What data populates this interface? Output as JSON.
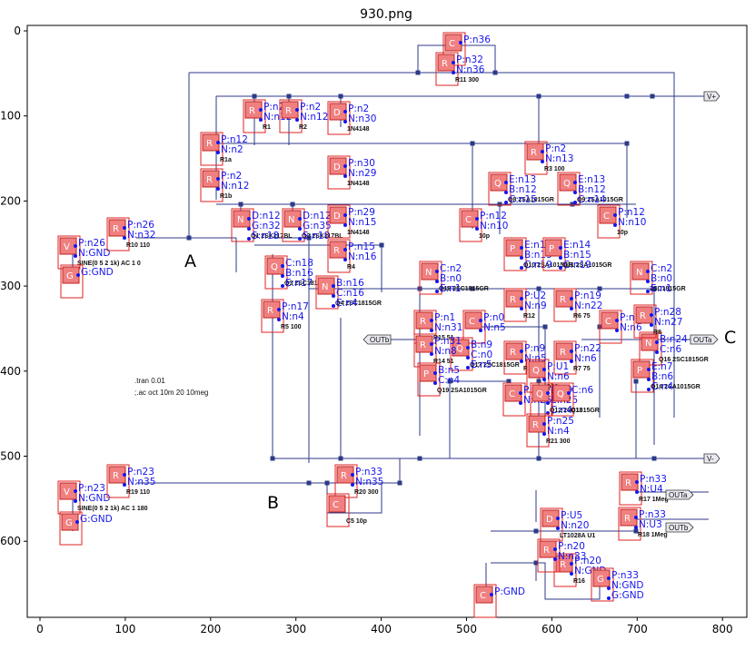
{
  "figure": {
    "title": "930.png",
    "x_ticks": [
      "0",
      "100",
      "200",
      "300",
      "400",
      "500",
      "600",
      "700",
      "800"
    ],
    "y_ticks": [
      "0",
      "100",
      "200",
      "300",
      "400",
      "500",
      "600"
    ]
  },
  "colors": {
    "label": "#1515ee",
    "wire": "#2c3a88",
    "component_fill": "#f08080",
    "component_border": "#e02020"
  },
  "schematic": {
    "test_points": [
      "A",
      "B",
      "C"
    ],
    "spice_directives": [
      ".tran 0.01",
      ";.ac oct 10m 20 10meg"
    ],
    "ports": [
      "V+",
      "V-",
      "OUTa",
      "OUTb"
    ],
    "components": [
      {
        "tag": "C",
        "part": "",
        "pins": [
          "P:n36"
        ]
      },
      {
        "tag": "R",
        "part": "R11 300",
        "pins": [
          "P:n32",
          "N:n36"
        ]
      },
      {
        "tag": "R",
        "part": "R1",
        "pins": [
          "P:n2",
          "N:n12"
        ]
      },
      {
        "tag": "R",
        "part": "R2",
        "pins": [
          "P:n2",
          "N:n12"
        ]
      },
      {
        "tag": "D",
        "part": "1N4148",
        "pins": [
          "P:n2",
          "N:n30"
        ]
      },
      {
        "tag": "R",
        "part": "R1a",
        "pins": [
          "P:n12",
          "N:n2"
        ]
      },
      {
        "tag": "R",
        "part": "R1b",
        "pins": [
          "P:n2",
          "N:n12"
        ]
      },
      {
        "tag": "D",
        "part": "1N4148",
        "pins": [
          "P:n30",
          "N:n29"
        ]
      },
      {
        "tag": "R",
        "part": "R3 100",
        "pins": [
          "P:n2",
          "N:n13"
        ]
      },
      {
        "tag": "Q",
        "part": "Q8 2SA1015GR",
        "pins": [
          "E:n13",
          "B:n12",
          "C:n15"
        ]
      },
      {
        "tag": "Q",
        "part": "Q9 2SA1015GR",
        "pins": [
          "E:n13",
          "B:n12",
          "C:n14"
        ]
      },
      {
        "tag": "C",
        "part": "10p",
        "pins": [
          "P:n12",
          "N:n10"
        ]
      },
      {
        "tag": "C",
        "part": "10p",
        "pins": [
          "P:n12",
          "N:n10"
        ]
      },
      {
        "tag": "N",
        "part": "Q1 2SK117BL",
        "pins": [
          "D:n12",
          "G:n32",
          "S:n18"
        ]
      },
      {
        "tag": "N",
        "part": "Q2 2SK117BL",
        "pins": [
          "D:n12",
          "G:n35",
          "S:n18"
        ]
      },
      {
        "tag": "D",
        "part": "1N4148",
        "pins": [
          "P:n29",
          "N:n15"
        ]
      },
      {
        "tag": "R",
        "part": "R4",
        "pins": [
          "P:n15",
          "N:n16"
        ]
      },
      {
        "tag": "V",
        "part": "SINE(0 5 2 1k) AC 1 0",
        "pins": [
          "P:n26",
          "N:GND"
        ]
      },
      {
        "tag": "G",
        "part": "",
        "pins": [
          "G:GND"
        ]
      },
      {
        "tag": "R",
        "part": "R10 110",
        "pins": [
          "P:n26",
          "N:n32"
        ]
      },
      {
        "tag": "Q",
        "part": "Q3 2SC1815GR",
        "pins": [
          "C:n18",
          "B:n16",
          "E:n17"
        ]
      },
      {
        "tag": "N",
        "part": "Q4 2SC1815GR",
        "pins": [
          "B:n16",
          "C:n16",
          "E:n4"
        ]
      },
      {
        "tag": "R",
        "part": "R5 100",
        "pins": [
          "P:n17",
          "N:n4"
        ]
      },
      {
        "tag": "P",
        "part": "Q10 2SA1015GR",
        "pins": [
          "E:n15",
          "B:n15",
          "C:n19"
        ]
      },
      {
        "tag": "P",
        "part": "Q11 2SA1015GR",
        "pins": [
          "E:n14",
          "B:n15",
          "C:n19"
        ]
      },
      {
        "tag": "N",
        "part": "Q18 2SC1815GR",
        "pins": [
          "C:n2",
          "B:n0",
          "E:n1"
        ]
      },
      {
        "tag": "N",
        "part": "2SC1815GR",
        "pins": [
          "C:n2",
          "B:n0",
          "E:n1"
        ]
      },
      {
        "tag": "R",
        "part": "R12",
        "pins": [
          "P:U2",
          "N:n9"
        ]
      },
      {
        "tag": "R",
        "part": "R6 75",
        "pins": [
          "P:n19",
          "N:n22"
        ]
      },
      {
        "tag": "C",
        "part": "",
        "pins": [
          "P:n0",
          "N:n5"
        ]
      },
      {
        "tag": "C",
        "part": "",
        "pins": [
          "P:n10",
          "N:n6"
        ]
      },
      {
        "tag": "R",
        "part": "R15 51",
        "pins": [
          "P:n1",
          "N:n31"
        ]
      },
      {
        "tag": "Q",
        "part": "Q17 2SC1815GR",
        "pins": [
          "B:n9",
          "C:n0",
          "E:n5"
        ]
      },
      {
        "tag": "R",
        "part": "R7 75",
        "pins": [
          "P:n22",
          "N:n6"
        ]
      },
      {
        "tag": "N",
        "part": "Q16 2SC1815GR",
        "pins": [
          "B:n24",
          "C:n6"
        ]
      },
      {
        "tag": "R",
        "part": "R13 75",
        "pins": [
          "P:n9",
          "N:n5"
        ]
      },
      {
        "tag": "R",
        "part": "R8",
        "pins": [
          "P:n28",
          "N:n27"
        ]
      },
      {
        "tag": "R",
        "part": "R14 51",
        "pins": [
          "P:n31",
          "N:n8"
        ]
      },
      {
        "tag": "P",
        "part": "Q19 2SA1015GR",
        "pins": [
          "B:n5",
          "C:n4"
        ]
      },
      {
        "tag": "P",
        "part": "Q14 2SA1015GR",
        "pins": [
          "E:n7",
          "B:n6",
          "C:n4"
        ]
      },
      {
        "tag": "Q",
        "part": "Q22",
        "pins": [
          "P:U1",
          "N:n6"
        ]
      },
      {
        "tag": "C",
        "part": "",
        "pins": [
          "P:n5",
          "N:n25"
        ]
      },
      {
        "tag": "Q",
        "part": "Q12 2SC1815GR",
        "pins": [
          "B:n9",
          "E:n25",
          "C:n4"
        ]
      },
      {
        "tag": "Q",
        "part": "Q13",
        "pins": [
          "C:n6"
        ]
      },
      {
        "tag": "R",
        "part": "R21 300",
        "pins": [
          "P:n25",
          "N:n4"
        ]
      },
      {
        "tag": "V",
        "part": "SINE(0 5 2 1k) AC 1 180",
        "pins": [
          "P:n23",
          "N:GND"
        ]
      },
      {
        "tag": "G",
        "part": "",
        "pins": [
          "G:GND"
        ]
      },
      {
        "tag": "R",
        "part": "R19 110",
        "pins": [
          "P:n23",
          "N:n35"
        ]
      },
      {
        "tag": "R",
        "part": "R20 300",
        "pins": [
          "P:n33",
          "N:n35"
        ]
      },
      {
        "tag": "C",
        "part": "C5 10p",
        "pins": []
      },
      {
        "tag": "R",
        "part": "R17 1Meg",
        "pins": [
          "P:n33",
          "N:U4"
        ]
      },
      {
        "tag": "R",
        "part": "R18 1Meg",
        "pins": [
          "P:n33",
          "N:U3"
        ]
      },
      {
        "tag": "D",
        "part": "LT1028A U1",
        "pins": [
          "P:U5",
          "N:n20"
        ]
      },
      {
        "tag": "R",
        "part": "R16",
        "pins": [
          "P:n20",
          "N:GND"
        ]
      },
      {
        "tag": "R",
        "part": "",
        "pins": [
          "P:n20",
          "N:n33"
        ]
      },
      {
        "tag": "C",
        "part": "",
        "pins": [
          "P:GND"
        ]
      },
      {
        "tag": "G",
        "part": "",
        "pins": [
          "P:n33",
          "N:GND",
          "G:GND"
        ]
      }
    ]
  }
}
